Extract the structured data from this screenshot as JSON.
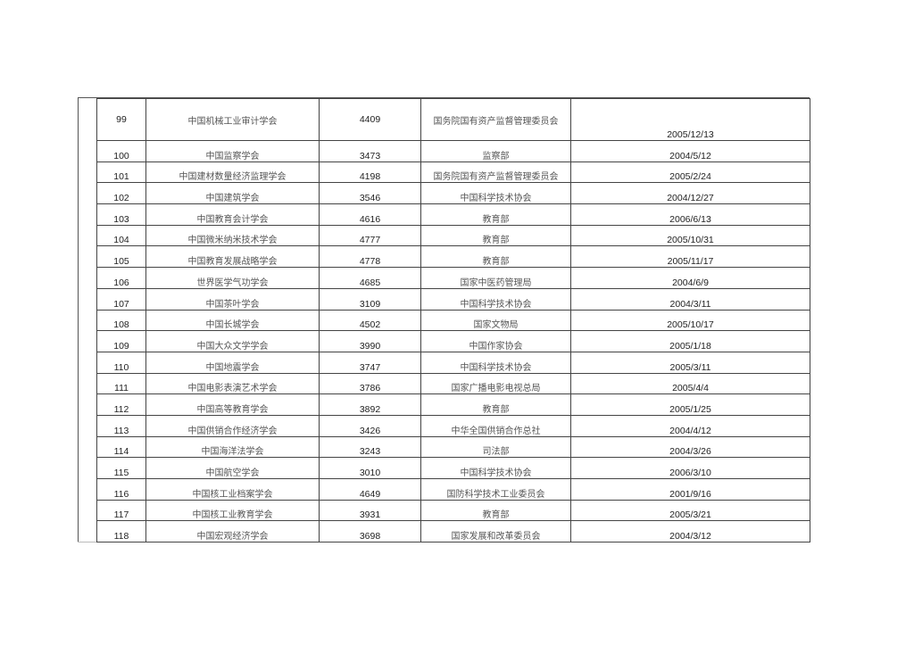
{
  "rows": [
    {
      "no": "99",
      "name": "中国机械工业审计学会",
      "code": "4409",
      "dept": "国务院国有资产监督管理委员会",
      "date": "2005/12/13"
    },
    {
      "no": "100",
      "name": "中国监察学会",
      "code": "3473",
      "dept": "监察部",
      "date": "2004/5/12"
    },
    {
      "no": "101",
      "name": "中国建材数量经济监理学会",
      "code": "4198",
      "dept": "国务院国有资产监督管理委员会",
      "date": "2005/2/24"
    },
    {
      "no": "102",
      "name": "中国建筑学会",
      "code": "3546",
      "dept": "中国科学技术协会",
      "date": "2004/12/27"
    },
    {
      "no": "103",
      "name": "中国教育会计学会",
      "code": "4616",
      "dept": "教育部",
      "date": "2006/6/13"
    },
    {
      "no": "104",
      "name": "中国微米纳米技术学会",
      "code": "4777",
      "dept": "教育部",
      "date": "2005/10/31"
    },
    {
      "no": "105",
      "name": "中国教育发展战略学会",
      "code": "4778",
      "dept": "教育部",
      "date": "2005/11/17"
    },
    {
      "no": "106",
      "name": "世界医学气功学会",
      "code": "4685",
      "dept": "国家中医药管理局",
      "date": "2004/6/9"
    },
    {
      "no": "107",
      "name": "中国茶叶学会",
      "code": "3109",
      "dept": "中国科学技术协会",
      "date": "2004/3/11"
    },
    {
      "no": "108",
      "name": "中国长城学会",
      "code": "4502",
      "dept": "国家文物局",
      "date": "2005/10/17"
    },
    {
      "no": "109",
      "name": "中国大众文学学会",
      "code": "3990",
      "dept": "中国作家协会",
      "date": "2005/1/18"
    },
    {
      "no": "110",
      "name": "中国地震学会",
      "code": "3747",
      "dept": "中国科学技术协会",
      "date": "2005/3/11"
    },
    {
      "no": "111",
      "name": "中国电影表演艺术学会",
      "code": "3786",
      "dept": "国家广播电影电视总局",
      "date": "2005/4/4"
    },
    {
      "no": "112",
      "name": "中国高等教育学会",
      "code": "3892",
      "dept": "教育部",
      "date": "2005/1/25"
    },
    {
      "no": "113",
      "name": "中国供销合作经济学会",
      "code": "3426",
      "dept": "中华全国供销合作总社",
      "date": "2004/4/12"
    },
    {
      "no": "114",
      "name": "中国海洋法学会",
      "code": "3243",
      "dept": "司法部",
      "date": "2004/3/26"
    },
    {
      "no": "115",
      "name": "中国航空学会",
      "code": "3010",
      "dept": "中国科学技术协会",
      "date": "2006/3/10"
    },
    {
      "no": "116",
      "name": "中国核工业档案学会",
      "code": "4649",
      "dept": "国防科学技术工业委员会",
      "date": "2001/9/16"
    },
    {
      "no": "117",
      "name": "中国核工业教育学会",
      "code": "3931",
      "dept": "教育部",
      "date": "2005/3/21"
    },
    {
      "no": "118",
      "name": "中国宏观经济学会",
      "code": "3698",
      "dept": "国家发展和改革委员会",
      "date": "2004/3/12"
    }
  ]
}
